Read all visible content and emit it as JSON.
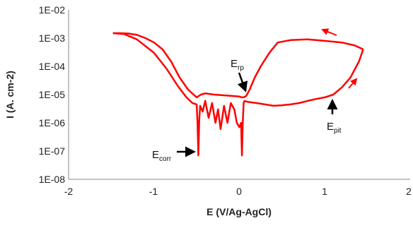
{
  "chart_data": {
    "type": "line",
    "title": "",
    "xlabel": "E (V/Ag-AgCl)",
    "ylabel": "I (A. cm-2)",
    "xlim": [
      -2,
      2
    ],
    "xticks": [
      -2,
      -1,
      0,
      1,
      2
    ],
    "xtick_labels": [
      "-2",
      "-1",
      "0",
      "1",
      "2"
    ],
    "yscale": "log",
    "ylim": [
      1e-08,
      0.01
    ],
    "yticks": [
      1e-08,
      1e-07,
      1e-06,
      1e-05,
      0.0001,
      0.001,
      0.01
    ],
    "ytick_labels": [
      "1E-08",
      "1E-07",
      "1E-06",
      "1E-05",
      "1E-04",
      "1E-03",
      "1E-02"
    ],
    "grid": false,
    "line_color": "#ff0000",
    "series": [
      {
        "x": [
          -1.48,
          -1.35,
          -1.2,
          -1.0,
          -0.85,
          -0.72,
          -0.62,
          -0.55,
          -0.5,
          -0.49,
          -0.48,
          -0.47,
          -0.46,
          -0.43,
          -0.4,
          -0.36,
          -0.32,
          -0.28,
          -0.25,
          -0.22,
          -0.18,
          -0.14,
          -0.1,
          -0.06,
          -0.03,
          0.0,
          0.02,
          0.03,
          0.04,
          0.05,
          0.06,
          0.1,
          0.2,
          0.3,
          0.4,
          0.5,
          0.6,
          0.7,
          0.8,
          0.9,
          1.0,
          1.1,
          1.2,
          1.3,
          1.4,
          1.45
        ],
        "y": [
          0.0015,
          0.0014,
          0.0009,
          0.0003,
          8e-05,
          2e-05,
          8e-06,
          5e-06,
          4.5e-06,
          1e-06,
          7e-08,
          1.2e-06,
          4e-06,
          2.5e-06,
          6e-06,
          1.5e-06,
          5e-06,
          1e-06,
          3e-06,
          6e-07,
          4e-06,
          1e-06,
          5e-06,
          3e-06,
          1e-06,
          7e-07,
          1e-06,
          7e-08,
          1e-06,
          5e-06,
          6e-06,
          5.5e-06,
          5e-06,
          4.5e-06,
          4e-06,
          4.2e-06,
          4.5e-06,
          5e-06,
          6e-06,
          7e-06,
          8e-06,
          1e-05,
          1.8e-05,
          4e-05,
          0.00015,
          0.0004
        ]
      },
      {
        "x": [
          1.45,
          1.35,
          1.2,
          1.0,
          0.8,
          0.6,
          0.45,
          0.35,
          0.25,
          0.18,
          0.12,
          0.08,
          0.05,
          0.03,
          0.0,
          -0.1,
          -0.2,
          -0.3,
          -0.4,
          -0.45,
          -0.5,
          -0.6,
          -0.7,
          -0.8,
          -0.9,
          -1.0,
          -1.1,
          -1.2,
          -1.3,
          -1.4,
          -1.48
        ],
        "y": [
          0.0004,
          0.00055,
          0.0007,
          0.0008,
          0.0009,
          0.00085,
          0.0007,
          0.0003,
          0.0001,
          4e-05,
          1.5e-05,
          9e-06,
          8e-06,
          8e-06,
          8.5e-06,
          9e-06,
          9.5e-06,
          1e-05,
          1.1e-05,
          1e-05,
          8e-06,
          1.5e-05,
          4e-05,
          0.00015,
          0.0004,
          0.0007,
          0.001,
          0.0013,
          0.00145,
          0.0015,
          0.0015
        ]
      }
    ],
    "annotations": [
      {
        "main": "E",
        "sub": "corr",
        "x": -0.48,
        "y": 1e-07
      },
      {
        "main": "E",
        "sub": "rp",
        "x": 0.06,
        "y": 1e-05
      },
      {
        "main": "E",
        "sub": "pit",
        "x": 1.1,
        "y": 1.3e-05
      }
    ]
  }
}
